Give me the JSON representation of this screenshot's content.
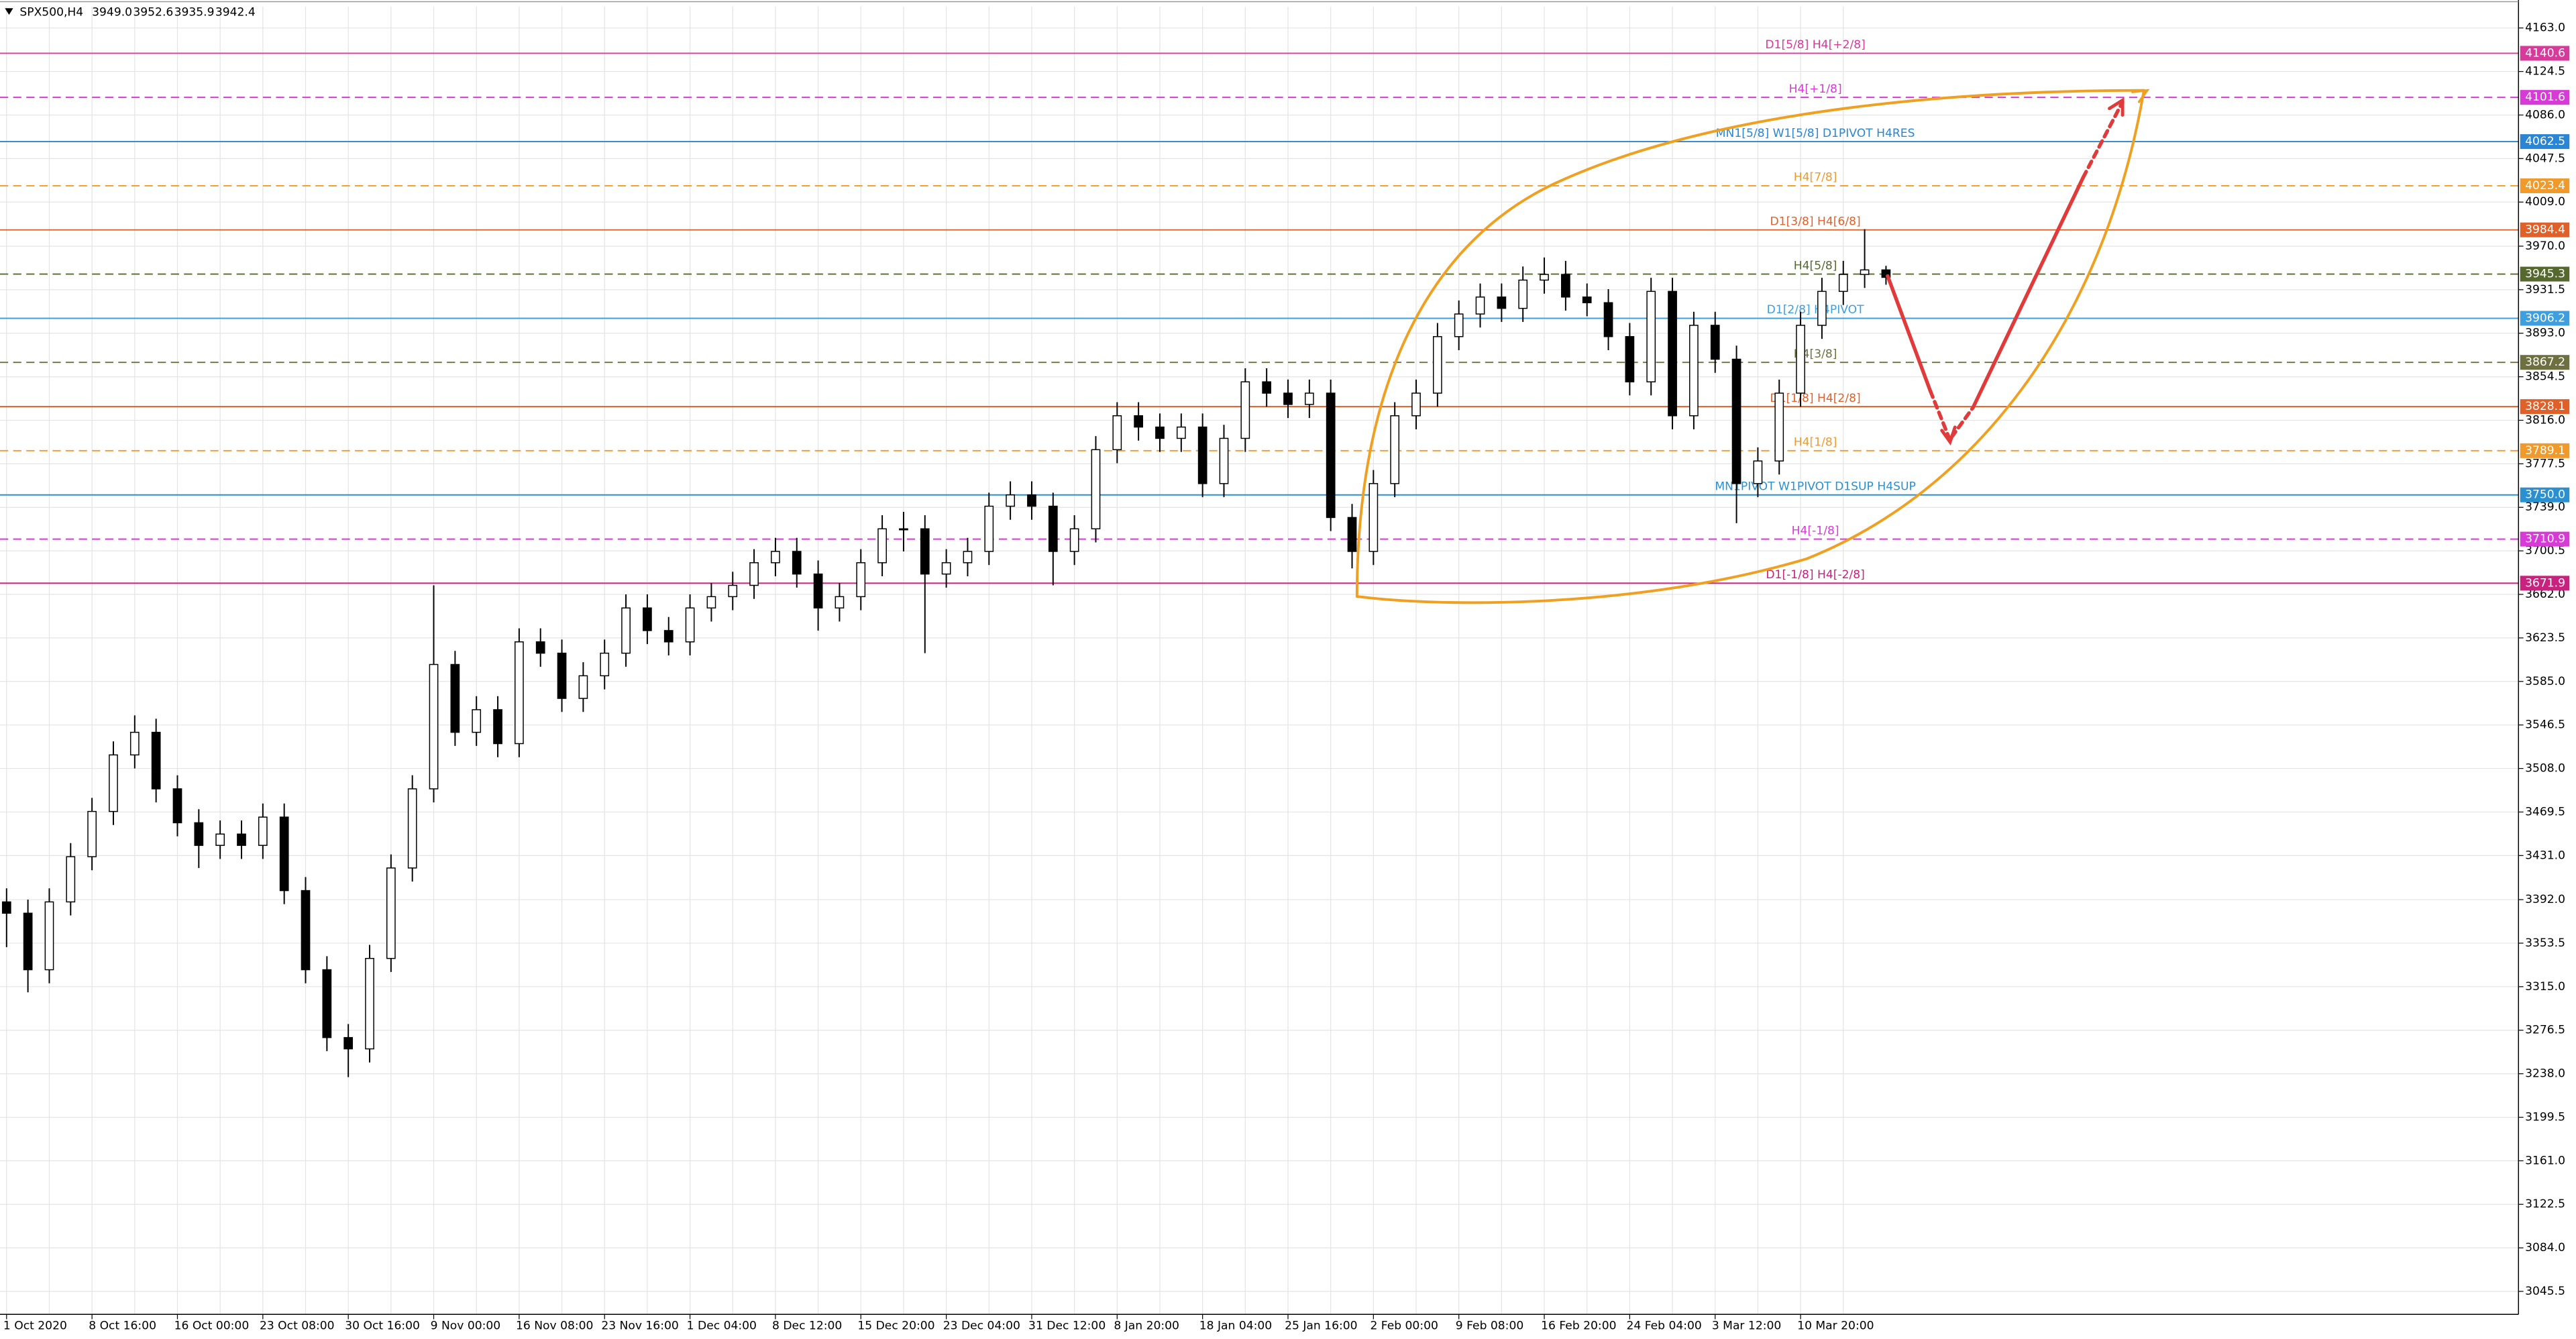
{
  "chart_data": {
    "type": "candlestick",
    "title": "SPX500,H4",
    "last_bar_labels": [
      "3949.0",
      "3952.6",
      "3935.9",
      "3942.4"
    ],
    "categories": [
      "1 Oct 2020",
      "8 Oct 16:00",
      "16 Oct 00:00",
      "23 Oct 08:00",
      "30 Oct 16:00",
      "9 Nov 00:00",
      "16 Nov 08:00",
      "23 Nov 16:00",
      "1 Dec 04:00",
      "8 Dec 12:00",
      "15 Dec 20:00",
      "23 Dec 04:00",
      "31 Dec 12:00",
      "8 Jan 20:00",
      "18 Jan 04:00",
      "25 Jan 16:00",
      "2 Feb 00:00",
      "9 Feb 08:00",
      "16 Feb 20:00",
      "24 Feb 04:00",
      "3 Mar 12:00",
      "10 Mar 20:00"
    ],
    "ohlc": [
      [
        3390,
        3402,
        3350,
        3380
      ],
      [
        3380,
        3392,
        3310,
        3330
      ],
      [
        3330,
        3402,
        3318,
        3390
      ],
      [
        3390,
        3442,
        3378,
        3430
      ],
      [
        3430,
        3482,
        3418,
        3470
      ],
      [
        3470,
        3532,
        3458,
        3520
      ],
      [
        3520,
        3555,
        3508,
        3540
      ],
      [
        3540,
        3552,
        3478,
        3490
      ],
      [
        3490,
        3502,
        3448,
        3460
      ],
      [
        3460,
        3472,
        3420,
        3440
      ],
      [
        3440,
        3462,
        3428,
        3450
      ],
      [
        3450,
        3462,
        3428,
        3440
      ],
      [
        3440,
        3477,
        3428,
        3465
      ],
      [
        3465,
        3477,
        3388,
        3400
      ],
      [
        3400,
        3412,
        3318,
        3330
      ],
      [
        3330,
        3342,
        3258,
        3270
      ],
      [
        3270,
        3282,
        3235,
        3260
      ],
      [
        3260,
        3352,
        3248,
        3340
      ],
      [
        3340,
        3432,
        3328,
        3420
      ],
      [
        3420,
        3502,
        3408,
        3490
      ],
      [
        3490,
        3670,
        3478,
        3600
      ],
      [
        3600,
        3612,
        3528,
        3540
      ],
      [
        3540,
        3572,
        3528,
        3560
      ],
      [
        3560,
        3572,
        3518,
        3530
      ],
      [
        3530,
        3632,
        3518,
        3620
      ],
      [
        3620,
        3632,
        3598,
        3610
      ],
      [
        3610,
        3622,
        3558,
        3570
      ],
      [
        3570,
        3602,
        3558,
        3590
      ],
      [
        3590,
        3622,
        3578,
        3610
      ],
      [
        3610,
        3662,
        3598,
        3650
      ],
      [
        3650,
        3662,
        3618,
        3630
      ],
      [
        3630,
        3642,
        3608,
        3620
      ],
      [
        3620,
        3662,
        3608,
        3650
      ],
      [
        3650,
        3672,
        3638,
        3660
      ],
      [
        3660,
        3682,
        3648,
        3670
      ],
      [
        3670,
        3702,
        3658,
        3690
      ],
      [
        3690,
        3712,
        3678,
        3700
      ],
      [
        3700,
        3712,
        3668,
        3680
      ],
      [
        3680,
        3692,
        3630,
        3650
      ],
      [
        3650,
        3672,
        3638,
        3660
      ],
      [
        3660,
        3702,
        3648,
        3690
      ],
      [
        3690,
        3732,
        3678,
        3720
      ],
      [
        3720,
        3735,
        3700,
        3720
      ],
      [
        3720,
        3732,
        3610,
        3680
      ],
      [
        3680,
        3702,
        3668,
        3690
      ],
      [
        3690,
        3712,
        3678,
        3700
      ],
      [
        3700,
        3752,
        3688,
        3740
      ],
      [
        3740,
        3762,
        3728,
        3750
      ],
      [
        3750,
        3762,
        3728,
        3740
      ],
      [
        3740,
        3752,
        3670,
        3700
      ],
      [
        3700,
        3732,
        3688,
        3720
      ],
      [
        3720,
        3802,
        3708,
        3790
      ],
      [
        3790,
        3832,
        3778,
        3820
      ],
      [
        3820,
        3832,
        3798,
        3810
      ],
      [
        3810,
        3822,
        3788,
        3800
      ],
      [
        3800,
        3822,
        3788,
        3810
      ],
      [
        3810,
        3822,
        3748,
        3760
      ],
      [
        3760,
        3812,
        3748,
        3800
      ],
      [
        3800,
        3862,
        3788,
        3850
      ],
      [
        3850,
        3862,
        3828,
        3840
      ],
      [
        3840,
        3852,
        3818,
        3830
      ],
      [
        3830,
        3852,
        3818,
        3840
      ],
      [
        3840,
        3852,
        3718,
        3730
      ],
      [
        3730,
        3742,
        3685,
        3700
      ],
      [
        3700,
        3772,
        3688,
        3760
      ],
      [
        3760,
        3832,
        3748,
        3820
      ],
      [
        3820,
        3852,
        3808,
        3840
      ],
      [
        3840,
        3902,
        3828,
        3890
      ],
      [
        3890,
        3922,
        3878,
        3910
      ],
      [
        3910,
        3937,
        3898,
        3925
      ],
      [
        3925,
        3937,
        3903,
        3915
      ],
      [
        3915,
        3952,
        3903,
        3940
      ],
      [
        3940,
        3960,
        3928,
        3945
      ],
      [
        3945,
        3957,
        3913,
        3925
      ],
      [
        3925,
        3937,
        3908,
        3920
      ],
      [
        3920,
        3932,
        3878,
        3890
      ],
      [
        3890,
        3902,
        3838,
        3850
      ],
      [
        3850,
        3942,
        3838,
        3930
      ],
      [
        3930,
        3942,
        3808,
        3820
      ],
      [
        3820,
        3912,
        3808,
        3900
      ],
      [
        3900,
        3912,
        3858,
        3870
      ],
      [
        3870,
        3882,
        3725,
        3760
      ],
      [
        3760,
        3792,
        3748,
        3780
      ],
      [
        3780,
        3852,
        3768,
        3840
      ],
      [
        3840,
        3912,
        3828,
        3900
      ],
      [
        3900,
        3942,
        3888,
        3930
      ],
      [
        3930,
        3957,
        3918,
        3945
      ],
      [
        3945,
        3985,
        3933,
        3949
      ],
      [
        3949.0,
        3952.6,
        3935.9,
        3942.4
      ]
    ],
    "ylim": [
      3025.2,
      4181.9
    ],
    "yticks": [
      {
        "value": 4163,
        "label": "4163.0"
      },
      4124.5,
      {
        "value": 4086,
        "label": "4086.0"
      },
      4047.5,
      {
        "value": 4009,
        "label": "4009.0"
      },
      {
        "value": 3970,
        "label": "3970.0"
      },
      3931.5,
      {
        "value": 3893,
        "label": "3893.0"
      },
      3854.5,
      {
        "value": 3816,
        "label": "3816.0"
      },
      3777.5,
      {
        "value": 3739,
        "label": "3739.0"
      },
      3700.5,
      {
        "value": 3662,
        "label": "3662.0"
      },
      3623.5,
      {
        "value": 3585,
        "label": "3585.0"
      },
      3546.5,
      {
        "value": 3508,
        "label": "3508.0"
      },
      3469.5,
      {
        "value": 3431,
        "label": "3431.0"
      },
      {
        "value": 3392,
        "label": "3392.0"
      },
      3353.5,
      {
        "value": 3315,
        "label": "3315.0"
      },
      3276.5,
      {
        "value": 3238,
        "label": "3238.0"
      },
      3199.5,
      {
        "value": 3161,
        "label": "3161.0"
      },
      3122.5,
      {
        "value": 3084,
        "label": "3084.0"
      },
      3045.5
    ],
    "grid": true,
    "levels": [
      {
        "price": 4140.6,
        "name": "D1[5/8] H4[+2/8]",
        "color": "#d63a9a",
        "dashed": false
      },
      {
        "price": 4101.6,
        "name": "H4[+1/8]",
        "color": "#d83ad8",
        "dashed": true
      },
      {
        "price": 4062.5,
        "name": "MN1[5/8] W1[5/8] D1PIVOT H4RES",
        "color": "#2a86d4",
        "dashed": false
      },
      {
        "price": 4023.4,
        "name": "H4[7/8]",
        "color": "#f09a2c",
        "dashed": true
      },
      {
        "price": 3984.4,
        "name": "D1[3/8] H4[6/8]",
        "color": "#e0602a",
        "dashed": false
      },
      {
        "price": 3945.3,
        "name": "H4[5/8]",
        "color": "#55682e",
        "dashed": true
      },
      {
        "price": 3906.2,
        "name": "D1[2/8] H4PIVOT",
        "color": "#3d9ee0",
        "dashed": false
      },
      {
        "price": 3867.2,
        "name": "H4[3/8]",
        "color": "#6e7040",
        "dashed": true
      },
      {
        "price": 3828.1,
        "name": "D1[1/8] H4[2/8]",
        "color": "#e0602a",
        "dashed": false
      },
      {
        "price": 3789.1,
        "name": "H4[1/8]",
        "color": "#f09a2c",
        "dashed": true
      },
      {
        "price": {
          "value": 3750,
          "label": "3750.0"
        },
        "name": "MN1PIVOT W1PIVOT D1SUP H4SUP",
        "color": "#2a90d0",
        "dashed": false
      },
      {
        "price": 3710.9,
        "name": "H4[-1/8]",
        "color": "#d83ad8",
        "dashed": true
      },
      {
        "price": 3671.9,
        "name": "D1[-1/8] H4[-2/8]",
        "color": "#c9217e",
        "dashed": false
      }
    ]
  }
}
